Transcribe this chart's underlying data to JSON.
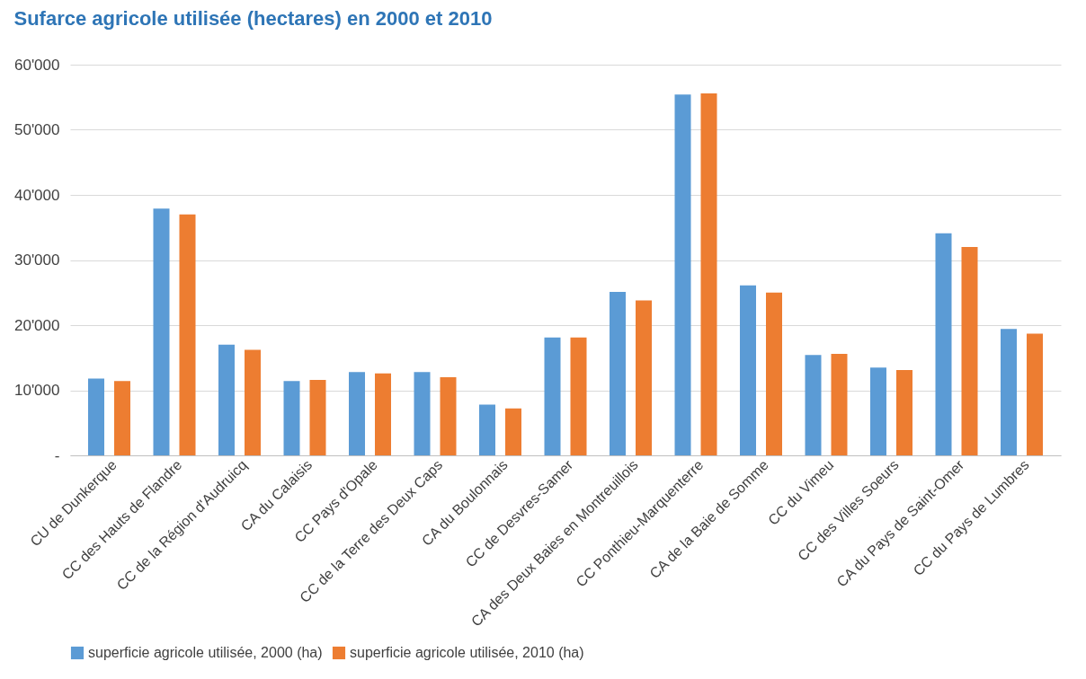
{
  "chart_data": {
    "type": "bar",
    "title": "Sufarce agricole utilisée (hectares) en 2000 et 2010",
    "categories": [
      "CU de Dunkerque",
      "CC des Hauts de Flandre",
      "CC de la Région d'Audruicq",
      "CA du Calaisis",
      "CC Pays d'Opale",
      "CC de la Terre des Deux Caps",
      "CA du Boulonnais",
      "CC de Desvres-Samer",
      "CA des Deux Baies en Montreuillois",
      "CC Ponthieu-Marquenterre",
      "CA de la Baie de Somme",
      "CC du Vimeu",
      "CC des Villes Soeurs",
      "CA du Pays de Saint-Omer",
      "CC du Pays de Lumbres"
    ],
    "series": [
      {
        "name": "superficie agricole utilisée, 2000 (ha)",
        "color": "#5b9bd5",
        "values": [
          11800,
          37900,
          17000,
          11400,
          12800,
          12800,
          7800,
          18100,
          25100,
          55400,
          26100,
          15400,
          13500,
          34100,
          19400
        ]
      },
      {
        "name": "superficie agricole utilisée, 2010 (ha)",
        "color": "#ed7d31",
        "values": [
          11400,
          37000,
          16200,
          11600,
          12600,
          12000,
          7200,
          18100,
          23800,
          55600,
          25000,
          15600,
          13100,
          32000,
          18700
        ]
      }
    ],
    "ylim": [
      0,
      60000
    ],
    "yticks": [
      {
        "value": 0,
        "label": "-"
      },
      {
        "value": 10000,
        "label": "10'000"
      },
      {
        "value": 20000,
        "label": "20'000"
      },
      {
        "value": 30000,
        "label": "30'000"
      },
      {
        "value": 40000,
        "label": "40'000"
      },
      {
        "value": 50000,
        "label": "50'000"
      },
      {
        "value": 60000,
        "label": "60'000"
      }
    ],
    "grid": "y",
    "legend": "bottom"
  }
}
